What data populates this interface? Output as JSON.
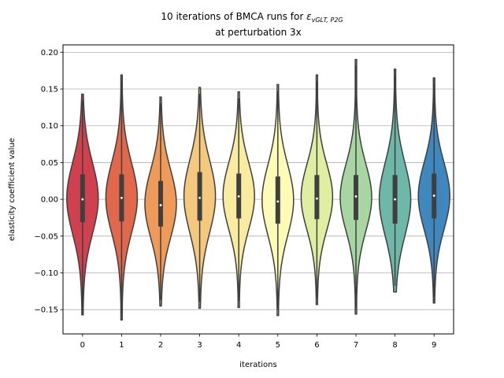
{
  "chart_data": {
    "type": "violin",
    "title_prefix": "10 iterations of BMCA runs for ",
    "title_symbol": "ε",
    "title_subscript": "vGLT, P2G",
    "title_line2": "at perturbation 3x",
    "xlabel": "iterations",
    "ylabel": "elasticity coefficient value",
    "ylim": [
      -0.183,
      0.21
    ],
    "yticks": [
      "0.20",
      "0.15",
      "0.10",
      "0.05",
      "0.00",
      "−0.05",
      "−0.10",
      "−0.15"
    ],
    "ytick_values": [
      0.2,
      0.15,
      0.1,
      0.05,
      0.0,
      -0.05,
      -0.1,
      -0.15
    ],
    "grid": "horizontal",
    "categories": [
      "0",
      "1",
      "2",
      "3",
      "4",
      "5",
      "6",
      "7",
      "8",
      "9"
    ],
    "series": [
      {
        "min": -0.157,
        "max": 0.143,
        "q1": -0.031,
        "median": 0.0,
        "q3": 0.034,
        "color": "#d0404e"
      },
      {
        "min": -0.164,
        "max": 0.169,
        "q1": -0.03,
        "median": 0.002,
        "q3": 0.034,
        "color": "#e2684c"
      },
      {
        "min": -0.145,
        "max": 0.139,
        "q1": -0.037,
        "median": -0.008,
        "q3": 0.025,
        "color": "#ef9a58"
      },
      {
        "min": -0.148,
        "max": 0.152,
        "q1": -0.029,
        "median": 0.002,
        "q3": 0.037,
        "color": "#f4c97e"
      },
      {
        "min": -0.147,
        "max": 0.146,
        "q1": -0.026,
        "median": 0.004,
        "q3": 0.035,
        "color": "#f9eba0"
      },
      {
        "min": -0.158,
        "max": 0.156,
        "q1": -0.033,
        "median": -0.003,
        "q3": 0.031,
        "color": "#fdfbb5"
      },
      {
        "min": -0.143,
        "max": 0.169,
        "q1": -0.027,
        "median": 0.001,
        "q3": 0.033,
        "color": "#dfeea0"
      },
      {
        "min": -0.156,
        "max": 0.19,
        "q1": -0.028,
        "median": 0.004,
        "q3": 0.033,
        "color": "#a7d6a2"
      },
      {
        "min": -0.126,
        "max": 0.177,
        "q1": -0.033,
        "median": 0.0,
        "q3": 0.033,
        "color": "#6db8a8"
      },
      {
        "min": -0.141,
        "max": 0.165,
        "q1": -0.026,
        "median": 0.005,
        "q3": 0.035,
        "color": "#3e87bf"
      }
    ]
  }
}
